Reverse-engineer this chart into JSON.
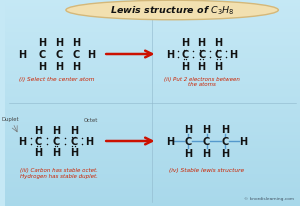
{
  "title": "Lewis structure of $\\mathit{C_3H_8}$",
  "bg_top": "#c5e8f5",
  "bg_bottom": "#a8d8ea",
  "title_bg": "#f2e0b0",
  "title_border": "#d4b87a",
  "atom_color": "#111111",
  "red_color": "#cc1100",
  "blue_color": "#5599cc",
  "caption_color": "#cc2200",
  "gray_circle": "#999999",
  "watermark": "© knordislearning.com",
  "panel1_label": "(i) Select the center atom",
  "panel2_label_1": "(ii) Put 2 electrons between",
  "panel2_label_2": "the atoms",
  "panel3_label_1": "(iii) Carbon has stable octet.",
  "panel3_label_2": "Hydrogen has stable duplet.",
  "panel4_label": "(iv) Stable lewis structure",
  "duplet_label": "Duplet",
  "octet_label": "Octet"
}
